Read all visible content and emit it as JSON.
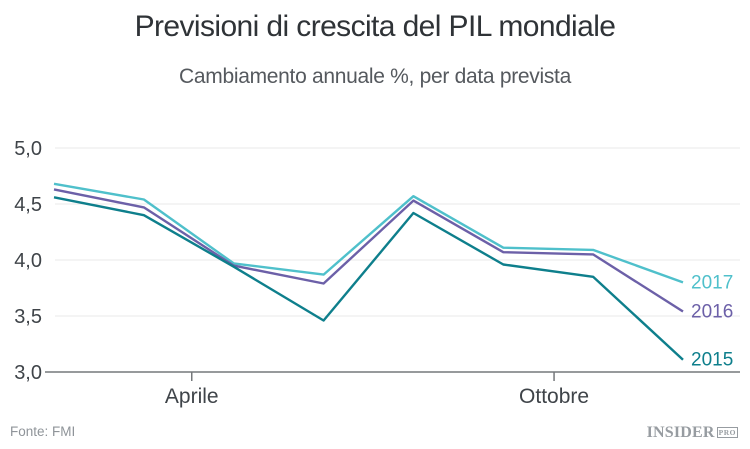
{
  "header": {
    "title": "Previsioni di crescita del PIL mondiale",
    "subtitle": "Cambiamento annuale %, per data prevista"
  },
  "footer": {
    "source": "Fonte: FMI",
    "logo_text": "INSIDER",
    "logo_badge": "PRO"
  },
  "chart_data": {
    "type": "line",
    "title": "Previsioni di crescita del PIL mondiale",
    "subtitle": "Cambiamento annuale %, per data prevista",
    "ylabel": "",
    "xlabel": "",
    "grid": true,
    "legend_position": "end-of-line-right",
    "ylim": [
      3.0,
      5.0
    ],
    "yticks": [
      5.0,
      4.5,
      4.0,
      3.5,
      3.0
    ],
    "ytick_labels": [
      "5,0",
      "4,5",
      "4,0",
      "3,5",
      "3,0"
    ],
    "x_count": 8,
    "x_ticks": [
      {
        "label": "Aprile",
        "frac": 0.219
      },
      {
        "label": "Ottobre",
        "frac": 0.795
      }
    ],
    "series": [
      {
        "name": "2017",
        "color": "#4fc0cb",
        "values": [
          4.68,
          4.54,
          3.97,
          3.87,
          4.57,
          4.11,
          4.09,
          3.8
        ]
      },
      {
        "name": "2016",
        "color": "#6c60a8",
        "values": [
          4.63,
          4.47,
          3.95,
          3.79,
          4.53,
          4.07,
          4.05,
          3.54
        ]
      },
      {
        "name": "2015",
        "color": "#0e7f8c",
        "values": [
          4.56,
          4.4,
          3.94,
          3.46,
          4.42,
          3.96,
          3.85,
          3.11
        ]
      }
    ],
    "style": {
      "grid_color": "#e8e9ea",
      "axis_color": "#75787b",
      "tick_label_color": "#3f4449",
      "line_width": 2.4
    }
  }
}
